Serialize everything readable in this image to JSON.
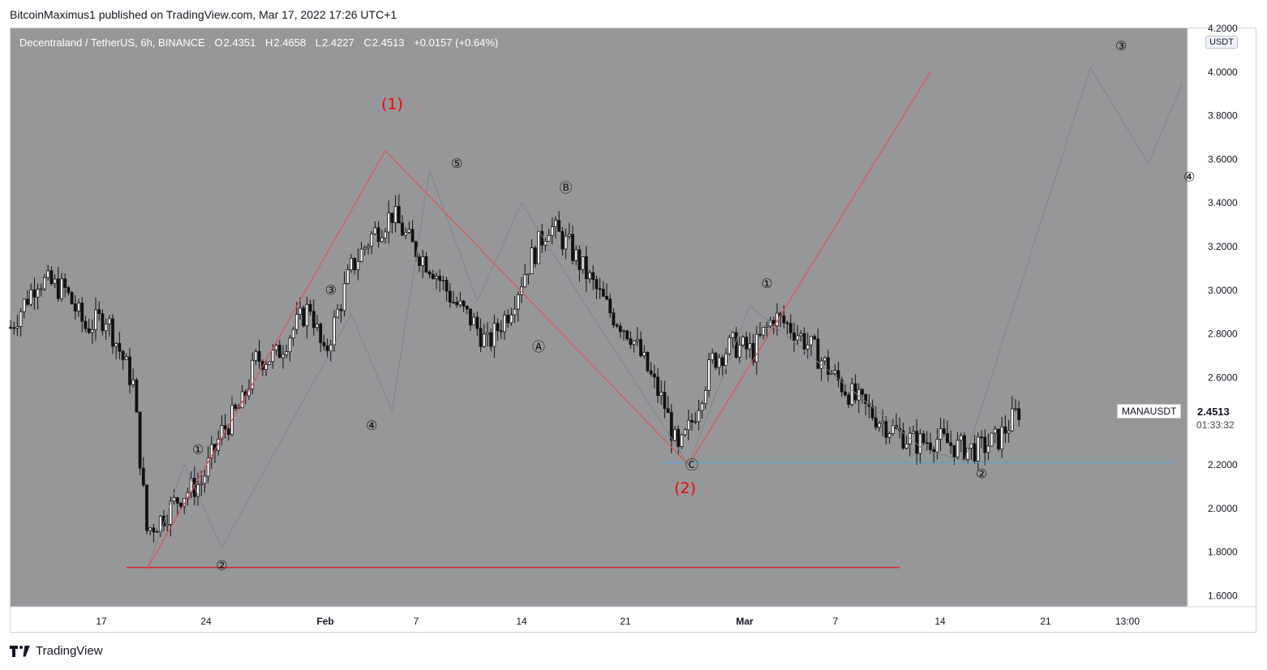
{
  "publisher_line": "BitcoinMaximus1 published on TradingView.com, Mar 17, 2022 17:26 UTC+1",
  "legend": {
    "symbol": "Decentraland / TetherUS, 6h, BINANCE",
    "o_label": "O",
    "o": "2.4351",
    "h_label": "H",
    "h": "2.4658",
    "l_label": "L",
    "l": "2.4227",
    "c_label": "C",
    "c": "2.4513",
    "change": "+0.0157 (+0.64%)"
  },
  "currency": "USDT",
  "ticker_tag": "MANAUSDT",
  "last_price": "2.4513",
  "countdown": "01:33:32",
  "footer_brand": "TradingView",
  "colors": {
    "background": "#959799",
    "pattern_line": "#e05353",
    "projection_line": "#80848a",
    "support_line": "#d92525",
    "support_line_2": "#4da8d6",
    "label_red": "#ff0000",
    "candle": "#111111"
  },
  "chart_data": {
    "type": "candlestick",
    "y_range": [
      1.55,
      4.2
    ],
    "y_ticks": [
      "1.6000",
      "1.8000",
      "2.0000",
      "2.2000",
      "2.4000",
      "2.6000",
      "2.8000",
      "3.0000",
      "3.2000",
      "3.4000",
      "3.6000",
      "3.8000",
      "4.0000",
      "4.2000"
    ],
    "x_ticks": [
      "17",
      "24",
      "Feb",
      "7",
      "14",
      "21",
      "Mar",
      "7",
      "14",
      "21",
      "13:00"
    ],
    "price_path_points": [
      [
        0,
        2.83
      ],
      [
        8,
        3.05
      ],
      [
        16,
        3.0
      ],
      [
        22,
        2.83
      ],
      [
        28,
        2.88
      ],
      [
        36,
        2.57
      ],
      [
        40,
        1.9
      ],
      [
        44,
        1.95
      ],
      [
        50,
        2.06
      ],
      [
        56,
        2.12
      ],
      [
        62,
        2.35
      ],
      [
        68,
        2.48
      ],
      [
        72,
        2.68
      ],
      [
        78,
        2.7
      ],
      [
        82,
        2.8
      ],
      [
        88,
        2.93
      ],
      [
        92,
        2.69
      ],
      [
        96,
        2.9
      ],
      [
        100,
        3.1
      ],
      [
        106,
        3.25
      ],
      [
        112,
        3.35
      ],
      [
        118,
        3.2
      ],
      [
        124,
        3.1
      ],
      [
        130,
        2.95
      ],
      [
        136,
        2.85
      ],
      [
        140,
        2.75
      ],
      [
        146,
        2.9
      ],
      [
        152,
        3.12
      ],
      [
        158,
        3.3
      ],
      [
        164,
        3.2
      ],
      [
        170,
        3.05
      ],
      [
        176,
        2.9
      ],
      [
        182,
        2.8
      ],
      [
        188,
        2.6
      ],
      [
        192,
        2.47
      ],
      [
        196,
        2.25
      ],
      [
        200,
        2.4
      ],
      [
        206,
        2.68
      ],
      [
        212,
        2.75
      ],
      [
        218,
        2.72
      ],
      [
        224,
        2.88
      ],
      [
        230,
        2.82
      ],
      [
        236,
        2.72
      ],
      [
        242,
        2.6
      ],
      [
        248,
        2.5
      ],
      [
        254,
        2.42
      ],
      [
        260,
        2.35
      ],
      [
        266,
        2.3
      ],
      [
        272,
        2.32
      ],
      [
        278,
        2.28
      ],
      [
        284,
        2.27
      ],
      [
        290,
        2.32
      ],
      [
        296,
        2.45
      ]
    ],
    "pattern_line": [
      [
        40,
        1.72
      ],
      [
        110,
        3.64
      ],
      [
        199,
        2.2
      ],
      [
        270,
        4.0
      ]
    ],
    "projection_line": [
      [
        40,
        1.72
      ],
      [
        51,
        2.2
      ],
      [
        62,
        1.82
      ],
      [
        100,
        2.89
      ],
      [
        112,
        2.45
      ],
      [
        123,
        3.55
      ],
      [
        137,
        2.95
      ],
      [
        150,
        3.4
      ],
      [
        166,
        3.0
      ],
      [
        199,
        2.2
      ],
      [
        217,
        2.93
      ],
      [
        268,
        2.27
      ],
      [
        280,
        2.22
      ],
      [
        317,
        4.02
      ],
      [
        334,
        3.58
      ],
      [
        344,
        3.95
      ]
    ],
    "support_lines": [
      {
        "from": 34,
        "to": 261,
        "y": 1.73
      },
      {
        "from": 191,
        "to": 341,
        "y": 2.21
      }
    ],
    "wave_labels": [
      {
        "text": "(1)",
        "x": 112,
        "y": 3.83,
        "red": true
      },
      {
        "text": "(2)",
        "x": 198,
        "y": 2.07,
        "red": true
      },
      {
        "text": "①",
        "x": 55,
        "y": 2.25
      },
      {
        "text": "②",
        "x": 62,
        "y": 1.72
      },
      {
        "text": "③",
        "x": 94,
        "y": 2.98
      },
      {
        "text": "④",
        "x": 106,
        "y": 2.36
      },
      {
        "text": "⑤",
        "x": 131,
        "y": 3.56
      },
      {
        "text": "Ⓐ",
        "x": 155,
        "y": 2.72
      },
      {
        "text": "Ⓑ",
        "x": 163,
        "y": 3.45
      },
      {
        "text": "Ⓒ",
        "x": 200,
        "y": 2.18
      },
      {
        "text": "①",
        "x": 222,
        "y": 3.01
      },
      {
        "text": "②",
        "x": 285,
        "y": 2.14
      },
      {
        "text": "③",
        "x": 326,
        "y": 4.1
      },
      {
        "text": "④",
        "x": 346,
        "y": 3.5
      }
    ]
  }
}
